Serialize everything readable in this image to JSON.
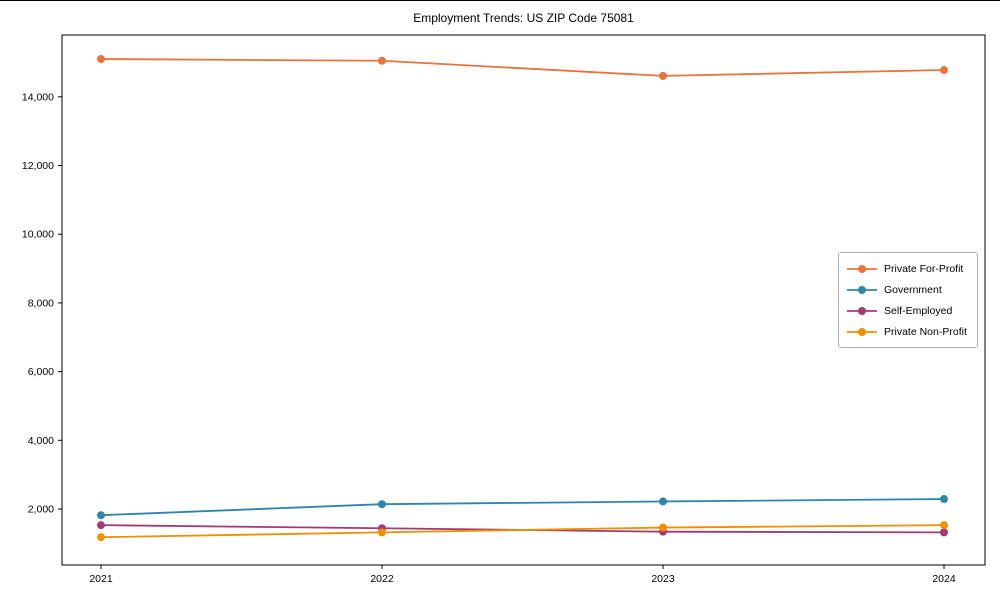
{
  "chart_data": {
    "type": "line",
    "title": "Employment Trends: US ZIP Code 75081",
    "x": [
      2021,
      2022,
      2023,
      2024
    ],
    "x_labels": [
      "2021",
      "2022",
      "2023",
      "2024"
    ],
    "series": [
      {
        "name": "Private For-Profit",
        "color": "#E8743B",
        "values": [
          15100,
          15050,
          14610,
          14780
        ]
      },
      {
        "name": "Government",
        "color": "#2E86AB",
        "values": [
          1820,
          2140,
          2220,
          2290
        ]
      },
      {
        "name": "Self-Employed",
        "color": "#A23B72",
        "values": [
          1530,
          1440,
          1340,
          1320
        ]
      },
      {
        "name": "Private Non-Profit",
        "color": "#F18F01",
        "values": [
          1180,
          1320,
          1460,
          1530
        ]
      }
    ],
    "yticks": [
      2000,
      4000,
      6000,
      8000,
      10000,
      12000,
      14000
    ],
    "ytick_labels": [
      "2,000",
      "4,000",
      "6,000",
      "8,000",
      "10,000",
      "12,000",
      "14,000"
    ],
    "ylim": [
      370,
      15800
    ],
    "grid": false,
    "legend_position": "center-right",
    "axis_color": "#000000",
    "tick_label_color": "#000000"
  }
}
